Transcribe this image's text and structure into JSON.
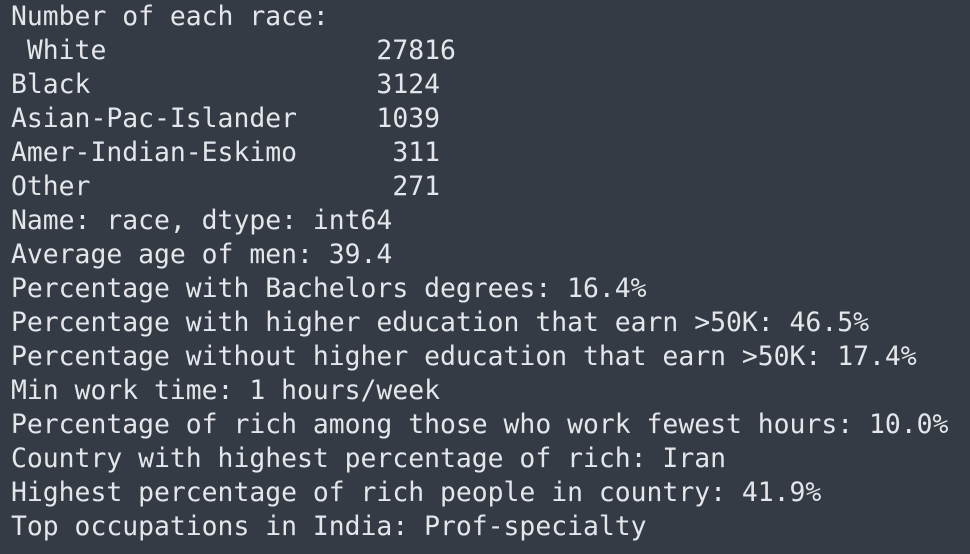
{
  "terminal": {
    "lines": [
      "Number of each race:",
      " White                 27816",
      "Black                  3124",
      "Asian-Pac-Islander     1039",
      "Amer-Indian-Eskimo      311",
      "Other                   271",
      "Name: race, dtype: int64",
      "Average age of men: 39.4",
      "Percentage with Bachelors degrees: 16.4%",
      "Percentage with higher education that earn >50K: 46.5%",
      "Percentage without higher education that earn >50K: 17.4%",
      "Min work time: 1 hours/week",
      "Percentage of rich among those who work fewest hours: 10.0%",
      "Country with highest percentage of rich: Iran",
      "Highest percentage of rich people in country: 41.9%",
      "Top occupations in India: Prof-specialty"
    ]
  }
}
